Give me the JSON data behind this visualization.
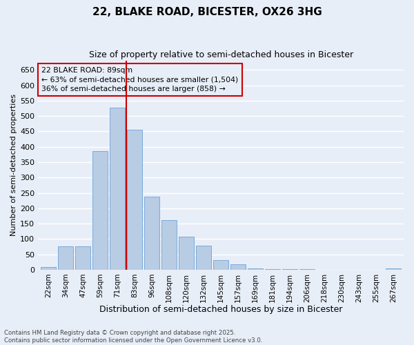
{
  "title": "22, BLAKE ROAD, BICESTER, OX26 3HG",
  "subtitle": "Size of property relative to semi-detached houses in Bicester",
  "xlabel": "Distribution of semi-detached houses by size in Bicester",
  "ylabel": "Number of semi-detached properties",
  "bar_color": "#b8cce4",
  "bar_edge_color": "#7aabdb",
  "categories": [
    "22sqm",
    "34sqm",
    "47sqm",
    "59sqm",
    "71sqm",
    "83sqm",
    "96sqm",
    "108sqm",
    "120sqm",
    "132sqm",
    "145sqm",
    "157sqm",
    "169sqm",
    "181sqm",
    "194sqm",
    "206sqm",
    "218sqm",
    "230sqm",
    "243sqm",
    "255sqm",
    "267sqm"
  ],
  "values": [
    8,
    76,
    76,
    387,
    528,
    455,
    238,
    162,
    107,
    78,
    30,
    17,
    5,
    3,
    1,
    1,
    0,
    0,
    0,
    0,
    5
  ],
  "vline_color": "#cc0000",
  "vline_x": 5.0,
  "annotation_text": "22 BLAKE ROAD: 89sqm\n← 63% of semi-detached houses are smaller (1,504)\n36% of semi-detached houses are larger (858) →",
  "annotation_box_color": "#cc0000",
  "footnote": "Contains HM Land Registry data © Crown copyright and database right 2025.\nContains public sector information licensed under the Open Government Licence v3.0.",
  "ylim": [
    0,
    680
  ],
  "yticks": [
    0,
    50,
    100,
    150,
    200,
    250,
    300,
    350,
    400,
    450,
    500,
    550,
    600,
    650
  ],
  "background_color": "#e8eef8",
  "grid_color": "#ffffff"
}
